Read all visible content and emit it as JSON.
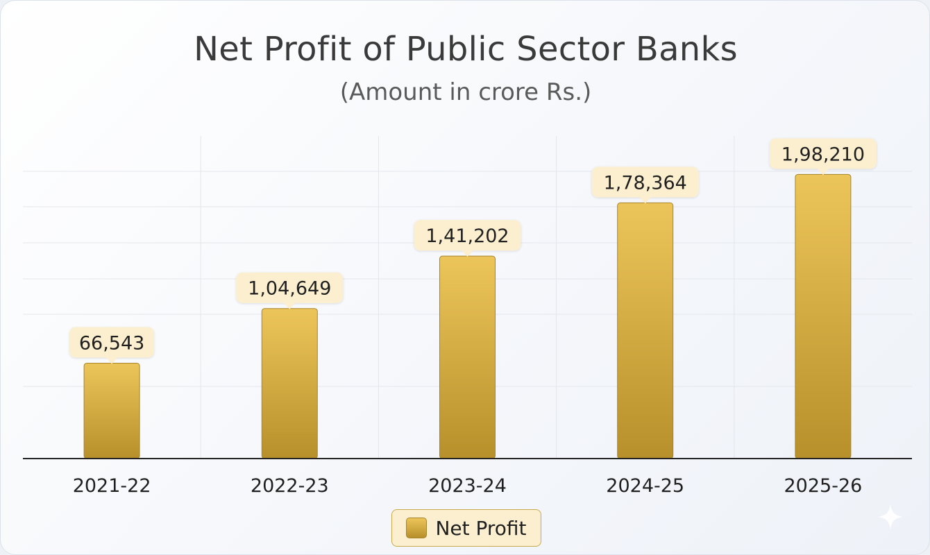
{
  "chart_data": {
    "type": "bar",
    "title": "Net Profit of Public Sector Banks",
    "subtitle": "(Amount in crore Rs.)",
    "categories": [
      "2021-22",
      "2022-23",
      "2023-24",
      "2024-25",
      "2025-26"
    ],
    "series": [
      {
        "name": "Net Profit",
        "values": [
          66543,
          104649,
          141202,
          178364,
          198210
        ],
        "labels": [
          "66,543",
          "1,04,649",
          "1,41,202",
          "1,78,364",
          "1,98,210"
        ]
      }
    ],
    "ylim": [
      0,
      225000
    ],
    "grid": true,
    "legend_position": "bottom-center",
    "colors": {
      "bar_top": "#ecc55a",
      "bar_bottom": "#b8902b",
      "label_bg": "#fbefcf",
      "grid": "#e3e6eb",
      "axis": "#222222"
    }
  }
}
